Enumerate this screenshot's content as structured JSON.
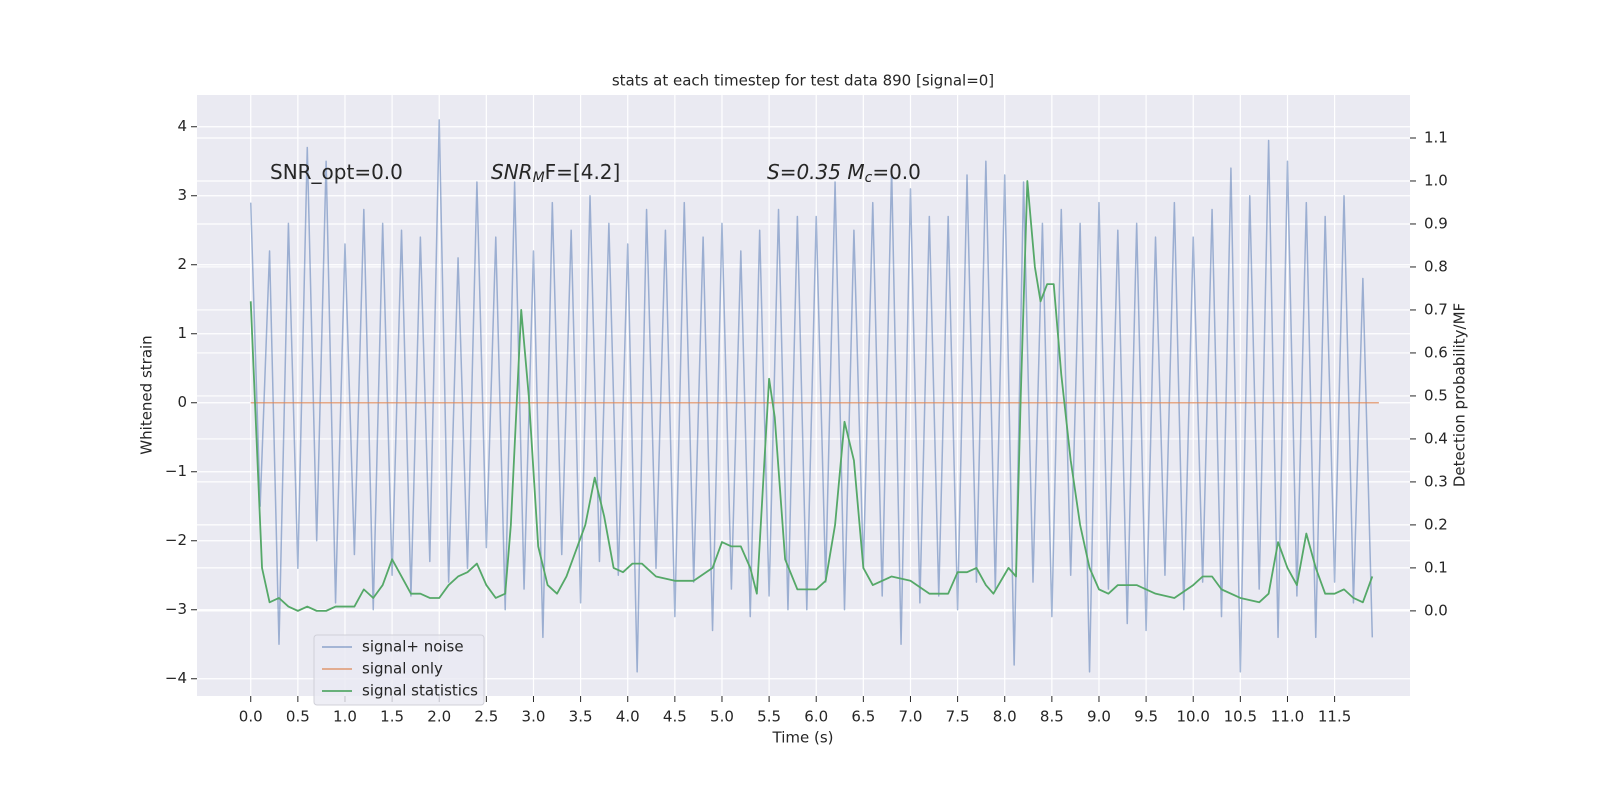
{
  "chart_data": {
    "type": "line",
    "title": "stats at each timestep for test data 890 [signal=0]",
    "xlabel": "Time (s)",
    "ylabel": "Whitened strain",
    "y2label": "Detection probability/MF",
    "xlim": [
      -0.57,
      12.3
    ],
    "ylim": [
      -4.25,
      4.46
    ],
    "y2lim": [
      -0.198,
      1.2
    ],
    "grid": true,
    "legend": "lower left",
    "xticks": [
      {
        "value": 0,
        "label": "0.0"
      },
      {
        "value": 0.5,
        "label": "0.5"
      },
      {
        "value": 1,
        "label": "1.0"
      },
      {
        "value": 1.5,
        "label": "1.5"
      },
      {
        "value": 2,
        "label": "2.0"
      },
      {
        "value": 2.5,
        "label": "2.5"
      },
      {
        "value": 3,
        "label": "3.0"
      },
      {
        "value": 3.5,
        "label": "3.5"
      },
      {
        "value": 4,
        "label": "4.0"
      },
      {
        "value": 4.5,
        "label": "4.5"
      },
      {
        "value": 5,
        "label": "5.0"
      },
      {
        "value": 5.5,
        "label": "5.5"
      },
      {
        "value": 6,
        "label": "6.0"
      },
      {
        "value": 6.5,
        "label": "6.5"
      },
      {
        "value": 7,
        "label": "7.0"
      },
      {
        "value": 7.5,
        "label": "7.5"
      },
      {
        "value": 8,
        "label": "8.0"
      },
      {
        "value": 8.5,
        "label": "8.5"
      },
      {
        "value": 9,
        "label": "9.0"
      },
      {
        "value": 9.5,
        "label": "9.5"
      },
      {
        "value": 10,
        "label": "10.0"
      },
      {
        "value": 10.5,
        "label": "10.5"
      },
      {
        "value": 11,
        "label": "11.0"
      },
      {
        "value": 11.5,
        "label": "11.5"
      }
    ],
    "yticks": [
      {
        "value": -4,
        "label": "−4"
      },
      {
        "value": -3,
        "label": "−3"
      },
      {
        "value": -2,
        "label": "−2"
      },
      {
        "value": -1,
        "label": "−1"
      },
      0,
      1,
      2,
      3,
      4
    ],
    "y2ticks": [
      {
        "value": 0,
        "label": "0.0"
      },
      {
        "value": 0.1,
        "label": "0.1"
      },
      {
        "value": 0.2,
        "label": "0.2"
      },
      {
        "value": 0.3,
        "label": "0.3"
      },
      {
        "value": 0.4,
        "label": "0.4"
      },
      {
        "value": 0.5,
        "label": "0.5"
      },
      {
        "value": 0.6,
        "label": "0.6"
      },
      {
        "value": 0.7,
        "label": "0.7"
      },
      {
        "value": 0.8,
        "label": "0.8"
      },
      {
        "value": 0.9,
        "label": "0.9"
      },
      {
        "value": 1,
        "label": "1.0"
      },
      {
        "value": 1.1,
        "label": "1.1"
      }
    ],
    "annotations": [
      {
        "text": "SNR_opt=0.0"
      },
      {
        "text": "SNR",
        "sub": "M",
        "after": "F=[4.2]"
      },
      {
        "text": "S=0.35   M",
        "sub": "c",
        "after": "=0.0"
      }
    ],
    "series": [
      {
        "name": "signal+ noise",
        "color": "#4c72b0",
        "opacity": 0.5,
        "x": [
          0,
          0.1,
          0.2,
          0.3,
          0.4,
          0.5,
          0.6,
          0.7,
          0.8,
          0.9,
          1,
          1.1,
          1.2,
          1.3,
          1.4,
          1.5,
          1.6,
          1.7,
          1.8,
          1.9,
          2,
          2.1,
          2.2,
          2.3,
          2.4,
          2.5,
          2.6,
          2.7,
          2.8,
          2.9,
          3,
          3.1,
          3.2,
          3.3,
          3.4,
          3.5,
          3.6,
          3.7,
          3.8,
          3.9,
          4,
          4.1,
          4.2,
          4.3,
          4.4,
          4.5,
          4.6,
          4.7,
          4.8,
          4.9,
          5,
          5.1,
          5.2,
          5.3,
          5.4,
          5.5,
          5.6,
          5.7,
          5.8,
          5.9,
          6,
          6.1,
          6.2,
          6.3,
          6.4,
          6.5,
          6.6,
          6.7,
          6.8,
          6.9,
          7,
          7.1,
          7.2,
          7.3,
          7.4,
          7.5,
          7.6,
          7.7,
          7.8,
          7.9,
          8,
          8.1,
          8.2,
          8.3,
          8.4,
          8.5,
          8.6,
          8.7,
          8.8,
          8.9,
          9,
          9.1,
          9.2,
          9.3,
          9.4,
          9.5,
          9.6,
          9.7,
          9.8,
          9.9,
          10,
          10.1,
          10.2,
          10.3,
          10.4,
          10.5,
          10.6,
          10.7,
          10.8,
          10.9,
          11,
          11.1,
          11.2,
          11.3,
          11.4,
          11.5,
          11.6,
          11.7,
          11.8,
          11.9
        ],
        "values": [
          2.9,
          -1.5,
          2.2,
          -3.5,
          2.6,
          -2.4,
          3.7,
          -2.0,
          3.5,
          -2.9,
          2.3,
          -2.2,
          2.8,
          -3.0,
          2.6,
          -2.5,
          2.5,
          -2.8,
          2.4,
          -2.3,
          4.1,
          -2.6,
          2.1,
          -2.4,
          3.2,
          -2.1,
          2.4,
          -3.0,
          3.2,
          -2.7,
          2.2,
          -3.4,
          2.9,
          -2.2,
          2.5,
          -2.9,
          3.0,
          -2.3,
          2.6,
          -2.5,
          2.3,
          -3.9,
          2.8,
          -2.4,
          2.5,
          -3.1,
          2.9,
          -2.6,
          2.4,
          -3.3,
          2.6,
          -2.7,
          2.2,
          -3.1,
          2.5,
          -2.8,
          2.8,
          -3.0,
          2.7,
          -3.0,
          2.7,
          -2.6,
          3.2,
          -3.0,
          2.5,
          -2.4,
          2.9,
          -2.8,
          3.4,
          -3.5,
          3.1,
          -2.9,
          2.7,
          -2.8,
          2.7,
          -3.0,
          3.3,
          -2.6,
          3.5,
          -2.7,
          3.3,
          -3.8,
          3.2,
          -2.6,
          2.6,
          -3.1,
          2.8,
          -2.5,
          2.6,
          -3.9,
          2.9,
          -2.7,
          2.5,
          -3.2,
          2.6,
          -3.3,
          2.4,
          -2.5,
          2.9,
          -3.0,
          2.4,
          -2.6,
          2.8,
          -3.1,
          3.4,
          -3.9,
          3.0,
          -2.7,
          3.8,
          -3.4,
          3.5,
          -2.8,
          2.9,
          -3.4,
          2.7,
          -2.6,
          3.0,
          -2.9,
          1.8,
          -3.4
        ]
      },
      {
        "name": "signal only",
        "color": "#dd8452",
        "opacity": 0.7,
        "x": [
          0,
          11.97
        ],
        "values": [
          0,
          0
        ]
      },
      {
        "name": "signal statistics",
        "color": "#55a868",
        "axis": "y2",
        "x": [
          0,
          0.12,
          0.2,
          0.3,
          0.4,
          0.5,
          0.6,
          0.7,
          0.8,
          0.9,
          1,
          1.1,
          1.2,
          1.3,
          1.4,
          1.5,
          1.6,
          1.7,
          1.8,
          1.9,
          2,
          2.1,
          2.2,
          2.3,
          2.4,
          2.5,
          2.6,
          2.7,
          2.76,
          2.87,
          2.95,
          3.05,
          3.15,
          3.25,
          3.35,
          3.45,
          3.55,
          3.65,
          3.75,
          3.85,
          3.95,
          4.05,
          4.15,
          4.3,
          4.5,
          4.7,
          4.9,
          5,
          5.1,
          5.2,
          5.3,
          5.37,
          5.5,
          5.56,
          5.67,
          5.8,
          6,
          6.1,
          6.2,
          6.3,
          6.4,
          6.5,
          6.6,
          6.8,
          7,
          7.2,
          7.4,
          7.5,
          7.6,
          7.7,
          7.8,
          7.88,
          8.04,
          8.12,
          8.17,
          8.24,
          8.32,
          8.38,
          8.45,
          8.52,
          8.6,
          8.7,
          8.8,
          8.9,
          9,
          9.1,
          9.2,
          9.4,
          9.6,
          9.8,
          10,
          10.1,
          10.2,
          10.3,
          10.5,
          10.7,
          10.8,
          10.9,
          11,
          11.1,
          11.2,
          11.3,
          11.4,
          11.5,
          11.6,
          11.7,
          11.8,
          11.9
        ],
        "values": [
          0.72,
          0.1,
          0.02,
          0.03,
          0.01,
          0,
          0.01,
          0,
          0,
          0.01,
          0.01,
          0.01,
          0.05,
          0.03,
          0.06,
          0.12,
          0.08,
          0.04,
          0.04,
          0.03,
          0.03,
          0.06,
          0.08,
          0.09,
          0.11,
          0.06,
          0.03,
          0.04,
          0.2,
          0.7,
          0.5,
          0.15,
          0.06,
          0.04,
          0.08,
          0.14,
          0.2,
          0.31,
          0.22,
          0.1,
          0.09,
          0.11,
          0.11,
          0.08,
          0.07,
          0.07,
          0.1,
          0.16,
          0.15,
          0.15,
          0.1,
          0.04,
          0.54,
          0.45,
          0.12,
          0.05,
          0.05,
          0.07,
          0.2,
          0.44,
          0.35,
          0.1,
          0.06,
          0.08,
          0.07,
          0.04,
          0.04,
          0.09,
          0.09,
          0.1,
          0.06,
          0.04,
          0.1,
          0.08,
          0.5,
          1,
          0.8,
          0.72,
          0.76,
          0.76,
          0.55,
          0.35,
          0.2,
          0.1,
          0.05,
          0.04,
          0.06,
          0.06,
          0.04,
          0.03,
          0.06,
          0.08,
          0.08,
          0.05,
          0.03,
          0.02,
          0.04,
          0.16,
          0.1,
          0.06,
          0.18,
          0.1,
          0.04,
          0.04,
          0.05,
          0.03,
          0.02,
          0.08
        ]
      }
    ]
  }
}
